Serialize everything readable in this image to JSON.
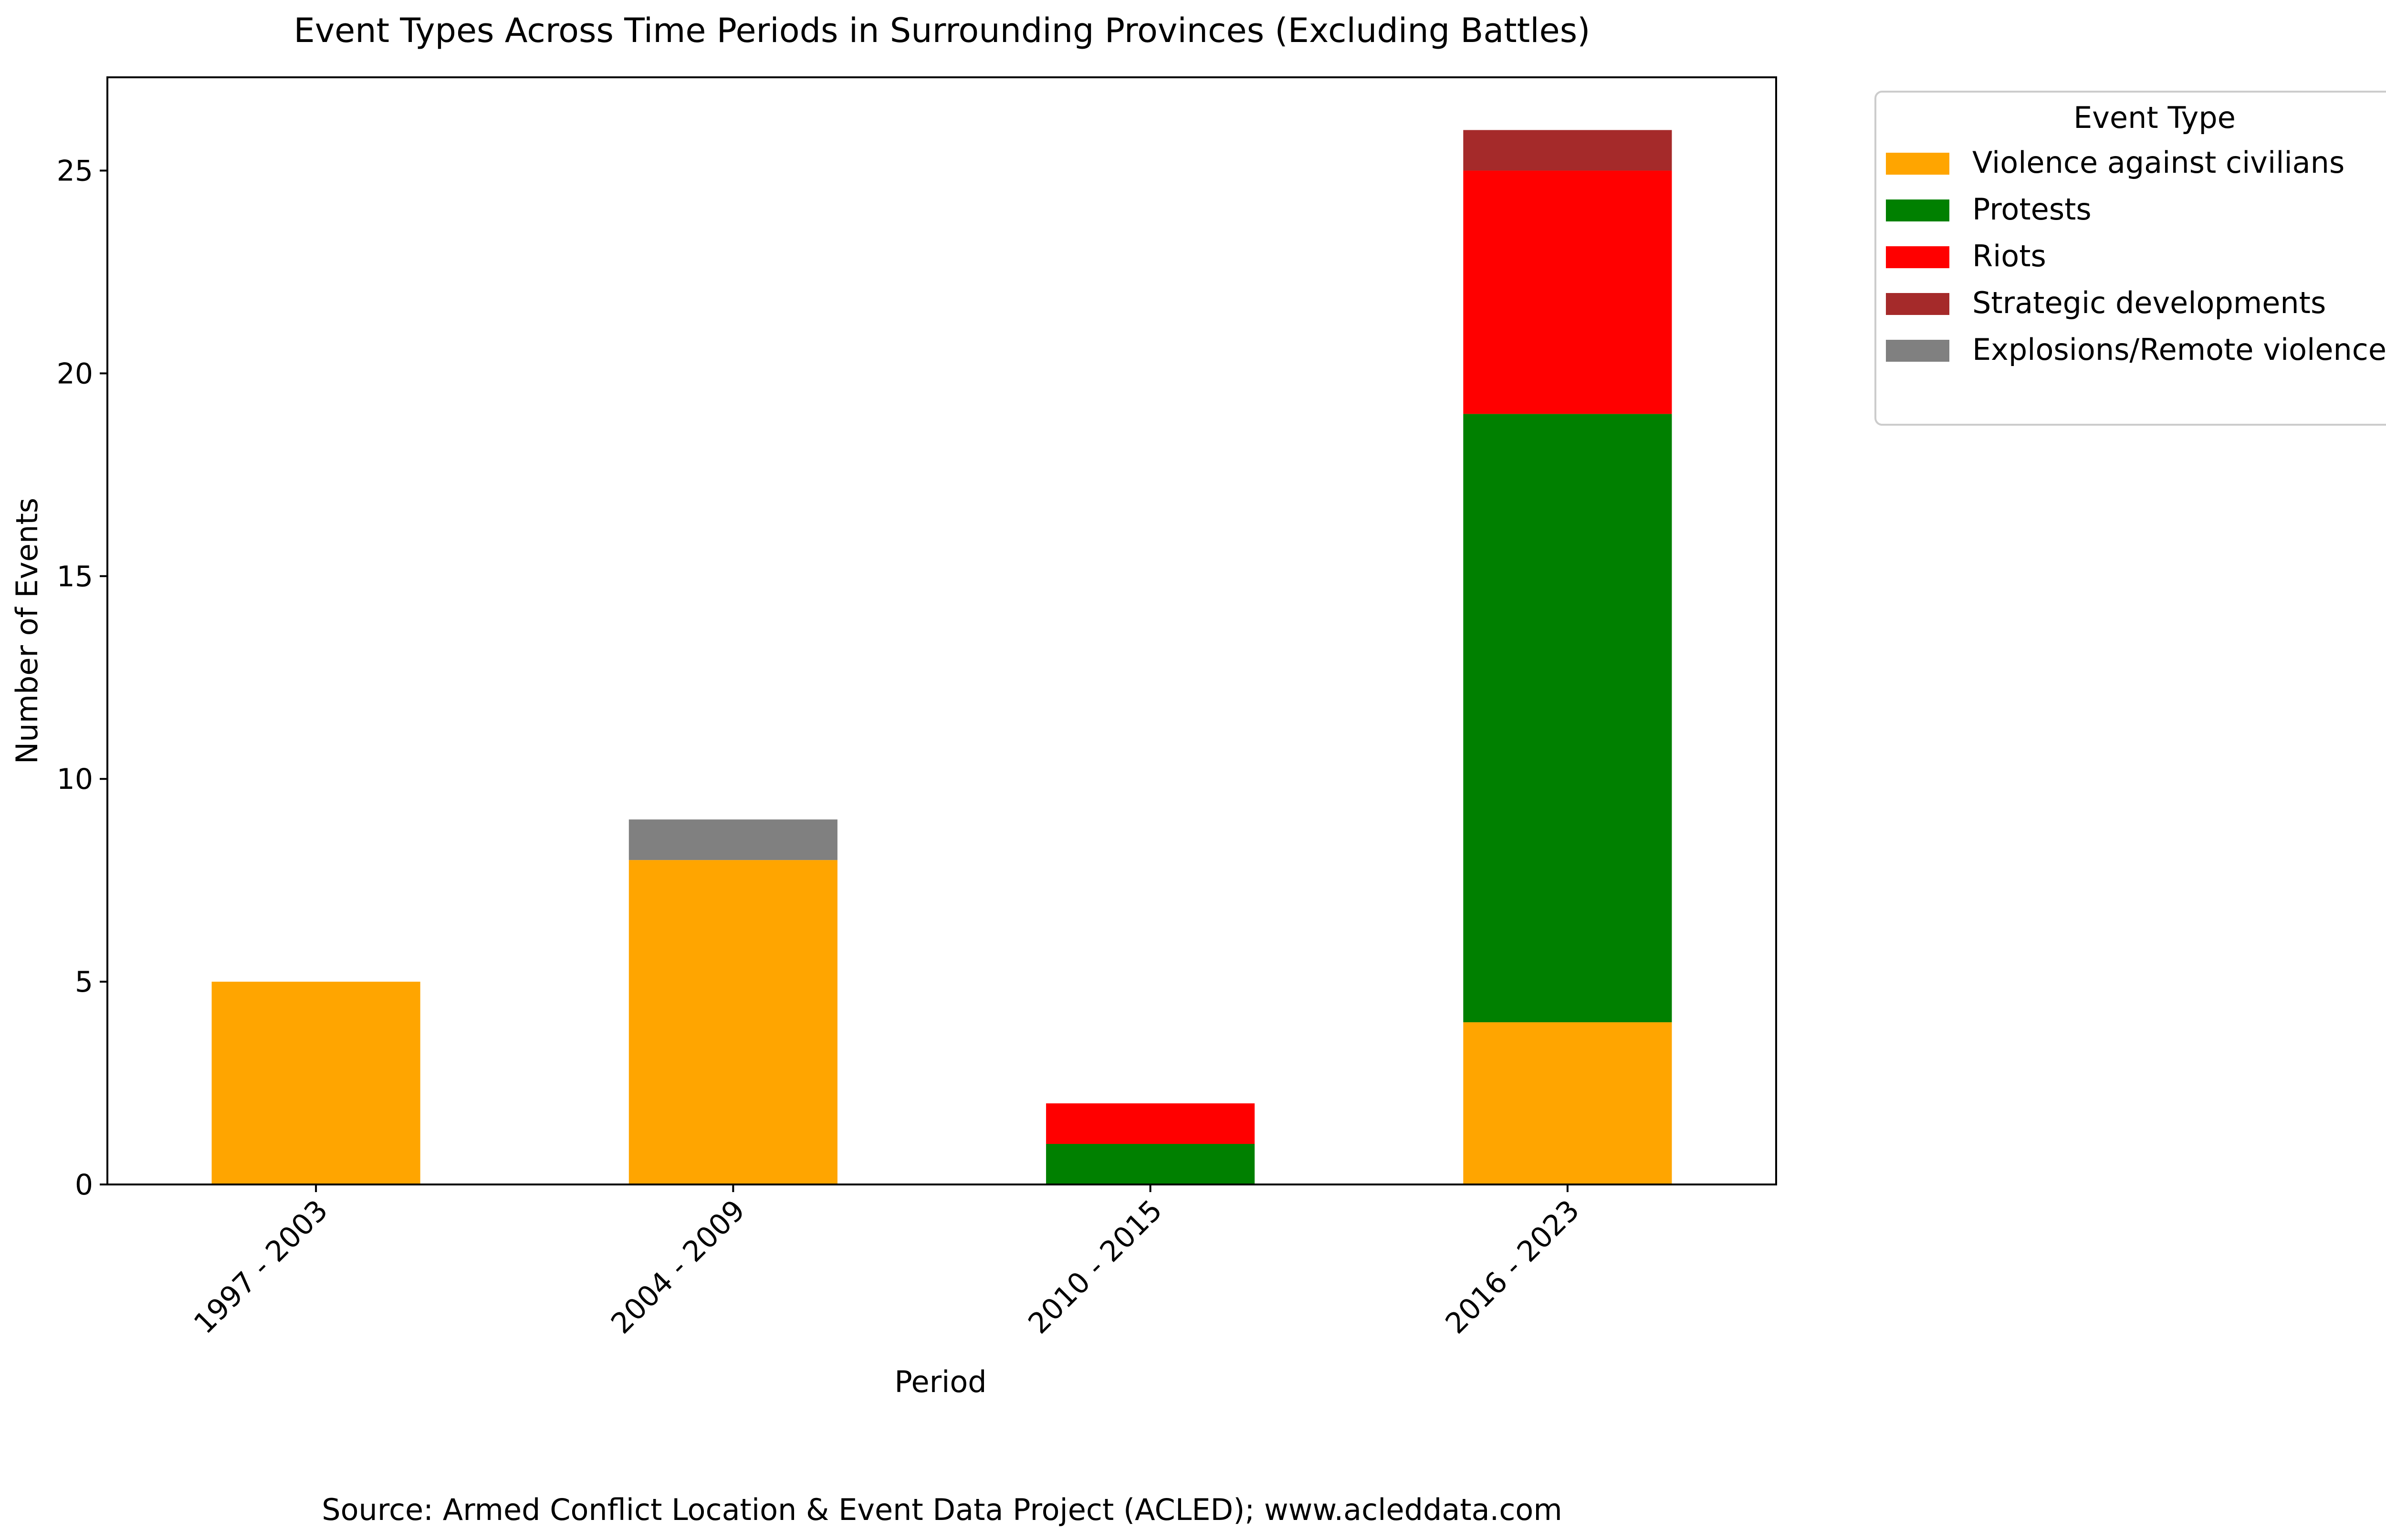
{
  "chart_data": {
    "type": "bar",
    "stacked": true,
    "title": "Event Types Across Time Periods in Surrounding Provinces (Excluding Battles)",
    "xlabel": "Period",
    "ylabel": "Number of Events",
    "categories": [
      "1997 - 2003",
      "2004 - 2009",
      "2010 - 2015",
      "2016 - 2023"
    ],
    "series": [
      {
        "name": "Violence against civilians",
        "color": "#ffa500",
        "values": [
          5,
          8,
          0,
          4
        ]
      },
      {
        "name": "Protests",
        "color": "#008000",
        "values": [
          0,
          0,
          1,
          15
        ]
      },
      {
        "name": "Riots",
        "color": "#ff0000",
        "values": [
          0,
          0,
          1,
          6
        ]
      },
      {
        "name": "Strategic developments",
        "color": "#a52a2a",
        "values": [
          0,
          0,
          0,
          1
        ]
      },
      {
        "name": "Explosions/Remote violence",
        "color": "#808080",
        "values": [
          0,
          1,
          0,
          0
        ]
      }
    ],
    "ylim": [
      0,
      27.3
    ],
    "yticks": [
      0,
      5,
      10,
      15,
      20,
      25
    ],
    "legend_title": "Event Type",
    "legend_position": "outside-top-right",
    "grid": false
  },
  "footer": {
    "source": "Source: Armed Conflict Location & Event Data Project (ACLED); www.acleddata.com"
  }
}
